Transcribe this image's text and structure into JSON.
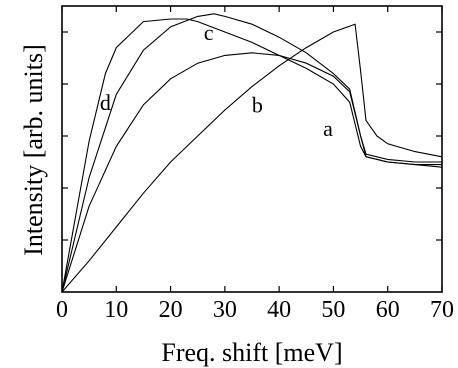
{
  "chart_data": {
    "type": "line",
    "xlabel": "Freq. shift [meV]",
    "ylabel": "Intensity [arb. units]",
    "xlim": [
      0,
      70
    ],
    "ylim": [
      0,
      1.1
    ],
    "xticks": [
      0,
      10,
      20,
      30,
      40,
      50,
      60,
      70
    ],
    "xtick_labels": [
      "0",
      "10",
      "20",
      "30",
      "40",
      "50",
      "60",
      "70"
    ],
    "yticks": [
      0.2,
      0.4,
      0.6,
      0.8,
      1.0
    ],
    "grid": false,
    "legend": "none",
    "series": [
      {
        "label": "a",
        "label_at": [
          49,
          0.6
        ],
        "x": [
          0,
          5,
          10,
          15,
          20,
          25,
          30,
          35,
          40,
          45,
          50,
          54,
          55,
          56,
          58,
          60,
          65,
          70
        ],
        "y": [
          0,
          0.12,
          0.25,
          0.38,
          0.5,
          0.6,
          0.7,
          0.79,
          0.87,
          0.94,
          1.0,
          1.03,
          0.85,
          0.66,
          0.6,
          0.57,
          0.54,
          0.52
        ]
      },
      {
        "label": "b",
        "label_at": [
          36,
          0.69
        ],
        "x": [
          0,
          5,
          10,
          15,
          20,
          25,
          30,
          35,
          40,
          45,
          50,
          53,
          55,
          56,
          58,
          60,
          65,
          70
        ],
        "y": [
          0,
          0.33,
          0.56,
          0.72,
          0.82,
          0.88,
          0.91,
          0.92,
          0.91,
          0.88,
          0.83,
          0.77,
          0.6,
          0.53,
          0.52,
          0.51,
          0.5,
          0.5
        ]
      },
      {
        "label": "c",
        "label_at": [
          27,
          0.97
        ],
        "x": [
          0,
          5,
          10,
          15,
          20,
          25,
          28,
          30,
          35,
          40,
          45,
          50,
          53,
          55,
          56,
          58,
          60,
          65,
          70
        ],
        "y": [
          0,
          0.44,
          0.76,
          0.93,
          1.02,
          1.06,
          1.07,
          1.06,
          1.03,
          0.98,
          0.92,
          0.84,
          0.78,
          0.6,
          0.52,
          0.51,
          0.5,
          0.49,
          0.49
        ]
      },
      {
        "label": "d",
        "label_at": [
          8,
          0.7
        ],
        "x": [
          0,
          5,
          8,
          10,
          15,
          20,
          23,
          25,
          30,
          35,
          40,
          45,
          50,
          53,
          55,
          56,
          58,
          60,
          65,
          70
        ],
        "y": [
          0,
          0.58,
          0.84,
          0.94,
          1.04,
          1.05,
          1.05,
          1.04,
          1.0,
          0.96,
          0.91,
          0.86,
          0.8,
          0.73,
          0.56,
          0.52,
          0.51,
          0.5,
          0.49,
          0.48
        ]
      }
    ]
  }
}
